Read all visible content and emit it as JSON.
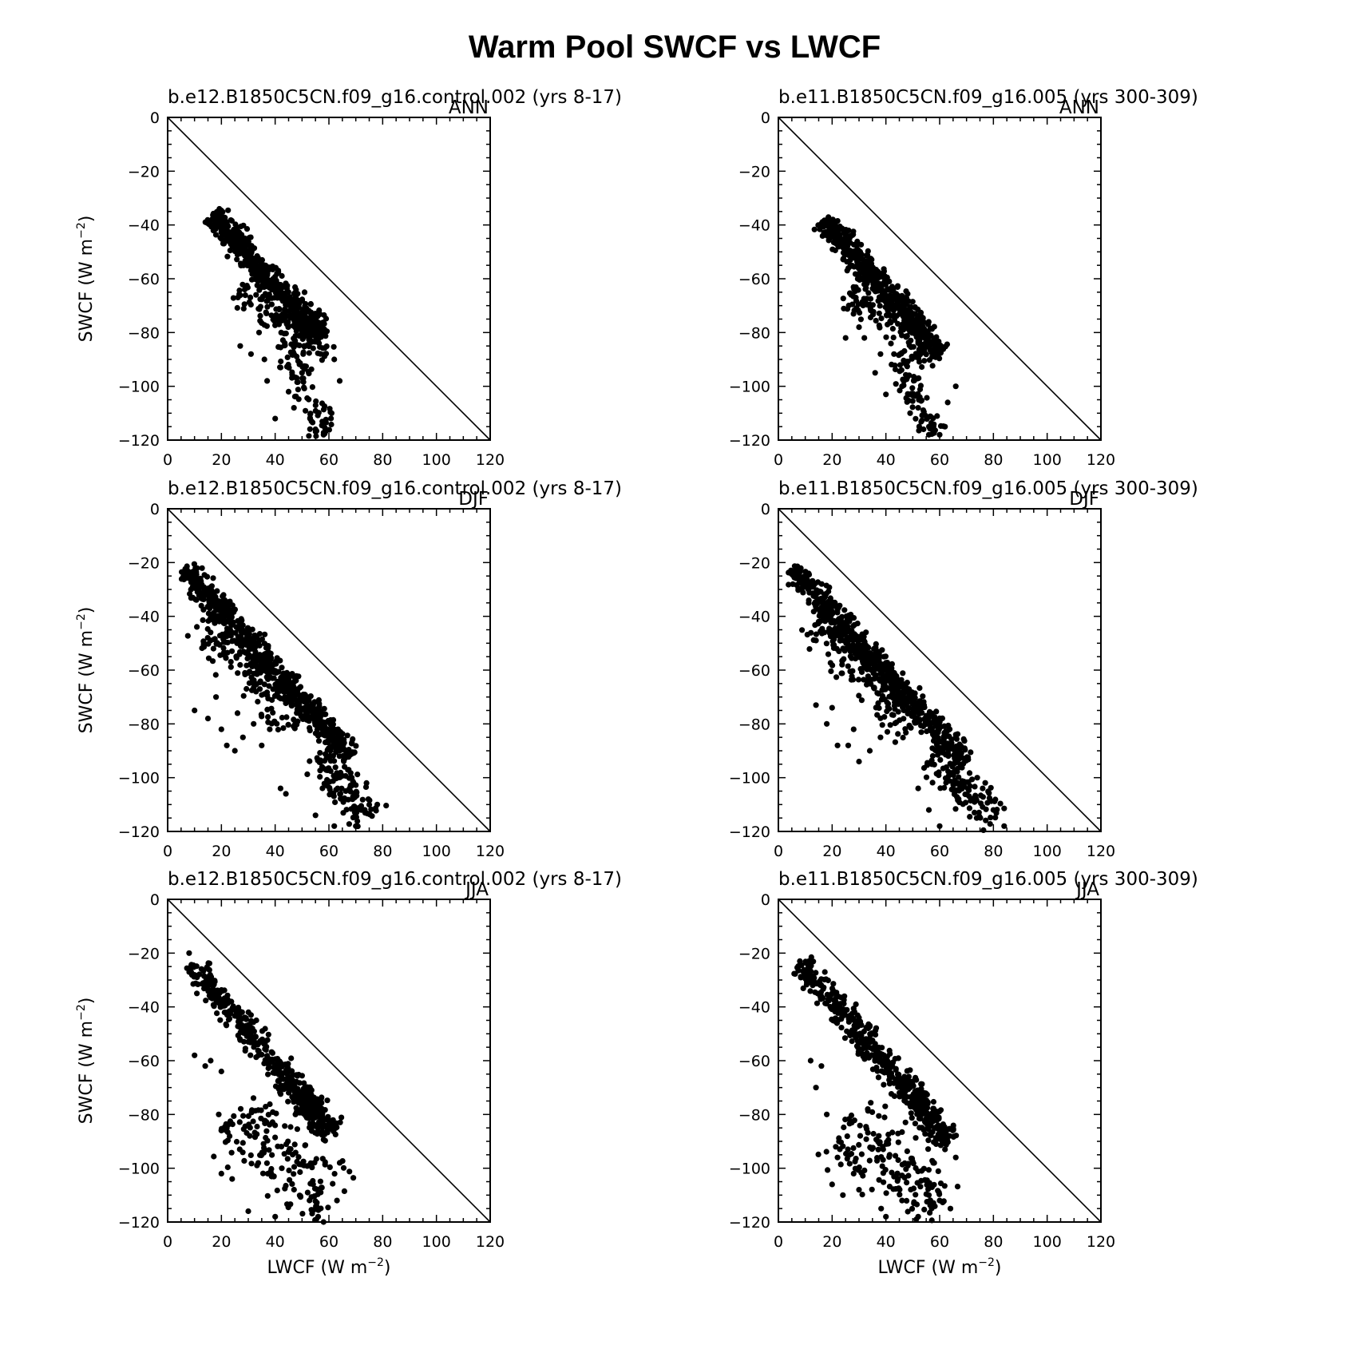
{
  "title": "Warm Pool SWCF vs LWCF",
  "chart_data": [
    {
      "type": "scatter",
      "run": "b.e12.B1850C5CN.f09_g16.control.002 (yrs 8-17)",
      "season": "ANN",
      "ylabel": "SWCF  (W m",
      "ylabel_unit_exp": "−2",
      "ylabel_close": ")",
      "xlabel": "",
      "xlabel_unit_exp": "",
      "xlabel_close": "",
      "xlim": [
        0,
        120
      ],
      "ylim": [
        -120,
        0
      ],
      "xticks": [
        "0",
        "20",
        "40",
        "60",
        "80",
        "100",
        "120"
      ],
      "yticks": [
        "0",
        "−20",
        "−40",
        "−60",
        "−80",
        "−100",
        "−120"
      ],
      "reference_line": "1:1 (SWCF = −LWCF)",
      "clusters": [
        {
          "x0": 16,
          "y0": -36,
          "x1": 58,
          "y1": -82,
          "width": 5,
          "count": 550
        },
        {
          "x0": 26,
          "y0": -64,
          "x1": 60,
          "y1": -88,
          "width": 7,
          "count": 120
        },
        {
          "x0": 44,
          "y0": -84,
          "x1": 58,
          "y1": -118,
          "width": 6,
          "count": 80
        }
      ],
      "points": [
        [
          27,
          -85
        ],
        [
          31,
          -88
        ],
        [
          37,
          -98
        ],
        [
          40,
          -112
        ],
        [
          42,
          -93
        ],
        [
          64,
          -98
        ],
        [
          61,
          -110
        ],
        [
          55,
          -116
        ],
        [
          47,
          -108
        ],
        [
          62,
          -90
        ],
        [
          58,
          -118
        ],
        [
          45,
          -102
        ],
        [
          36,
          -90
        ],
        [
          50,
          -95
        ],
        [
          53,
          -112
        ],
        [
          34,
          -80
        ]
      ]
    },
    {
      "type": "scatter",
      "run": "b.e11.B1850C5CN.f09_g16.005 (yrs 300-309)",
      "season": "ANN",
      "ylabel": "",
      "ylabel_unit_exp": "",
      "ylabel_close": "",
      "xlabel": "",
      "xlabel_unit_exp": "",
      "xlabel_close": "",
      "xlim": [
        0,
        120
      ],
      "ylim": [
        -120,
        0
      ],
      "xticks": [
        "0",
        "20",
        "40",
        "60",
        "80",
        "100",
        "120"
      ],
      "yticks": [
        "0",
        "−20",
        "−40",
        "−60",
        "−80",
        "−100",
        "−120"
      ],
      "reference_line": "1:1 (SWCF = −LWCF)",
      "clusters": [
        {
          "x0": 17,
          "y0": -38,
          "x1": 60,
          "y1": -88,
          "width": 5,
          "count": 560
        },
        {
          "x0": 26,
          "y0": -64,
          "x1": 61,
          "y1": -92,
          "width": 7,
          "count": 110
        },
        {
          "x0": 44,
          "y0": -88,
          "x1": 58,
          "y1": -118,
          "width": 6,
          "count": 80
        }
      ],
      "points": [
        [
          25,
          -82
        ],
        [
          32,
          -82
        ],
        [
          36,
          -95
        ],
        [
          40,
          -103
        ],
        [
          43,
          -88
        ],
        [
          66,
          -100
        ],
        [
          62,
          -115
        ],
        [
          56,
          -118
        ],
        [
          49,
          -110
        ],
        [
          63,
          -106
        ],
        [
          60,
          -118
        ],
        [
          46,
          -100
        ],
        [
          38,
          -88
        ],
        [
          52,
          -108
        ],
        [
          54,
          -116
        ],
        [
          30,
          -78
        ]
      ]
    },
    {
      "type": "scatter",
      "run": "b.e12.B1850C5CN.f09_g16.control.002 (yrs 8-17)",
      "season": "DJF",
      "ylabel": "SWCF  (W m",
      "ylabel_unit_exp": "−2",
      "ylabel_close": ")",
      "xlabel": "",
      "xlabel_unit_exp": "",
      "xlabel_close": "",
      "xlim": [
        0,
        120
      ],
      "ylim": [
        -120,
        0
      ],
      "xticks": [
        "0",
        "20",
        "40",
        "60",
        "80",
        "100",
        "120"
      ],
      "yticks": [
        "0",
        "−20",
        "−40",
        "−60",
        "−80",
        "−100",
        "−120"
      ],
      "reference_line": "1:1 (SWCF = −LWCF)",
      "clusters": [
        {
          "x0": 6,
          "y0": -22,
          "x1": 68,
          "y1": -92,
          "width": 5,
          "count": 600
        },
        {
          "x0": 12,
          "y0": -40,
          "x1": 50,
          "y1": -80,
          "width": 9,
          "count": 180
        },
        {
          "x0": 56,
          "y0": -90,
          "x1": 74,
          "y1": -116,
          "width": 8,
          "count": 120
        }
      ],
      "points": [
        [
          10,
          -75
        ],
        [
          15,
          -78
        ],
        [
          20,
          -82
        ],
        [
          22,
          -88
        ],
        [
          25,
          -90
        ],
        [
          28,
          -85
        ],
        [
          32,
          -80
        ],
        [
          35,
          -88
        ],
        [
          42,
          -104
        ],
        [
          44,
          -106
        ],
        [
          78,
          -110
        ],
        [
          74,
          -102
        ],
        [
          70,
          -118
        ],
        [
          62,
          -118
        ],
        [
          55,
          -114
        ],
        [
          18,
          -70
        ],
        [
          26,
          -76
        ],
        [
          38,
          -82
        ]
      ]
    },
    {
      "type": "scatter",
      "run": "b.e11.B1850C5CN.f09_g16.005 (yrs 300-309)",
      "season": "DJF",
      "ylabel": "",
      "ylabel_unit_exp": "",
      "ylabel_close": "",
      "xlabel": "",
      "xlabel_unit_exp": "",
      "xlabel_close": "",
      "xlim": [
        0,
        120
      ],
      "ylim": [
        -120,
        0
      ],
      "xticks": [
        "0",
        "20",
        "40",
        "60",
        "80",
        "100",
        "120"
      ],
      "yticks": [
        "0",
        "−20",
        "−40",
        "−60",
        "−80",
        "−100",
        "−120"
      ],
      "reference_line": "1:1 (SWCF = −LWCF)",
      "clusters": [
        {
          "x0": 5,
          "y0": -22,
          "x1": 70,
          "y1": -95,
          "width": 5,
          "count": 600
        },
        {
          "x0": 12,
          "y0": -40,
          "x1": 50,
          "y1": -82,
          "width": 9,
          "count": 170
        },
        {
          "x0": 56,
          "y0": -92,
          "x1": 80,
          "y1": -116,
          "width": 7,
          "count": 110
        }
      ],
      "points": [
        [
          14,
          -73
        ],
        [
          18,
          -80
        ],
        [
          22,
          -88
        ],
        [
          26,
          -88
        ],
        [
          30,
          -94
        ],
        [
          34,
          -90
        ],
        [
          38,
          -85
        ],
        [
          52,
          -104
        ],
        [
          56,
          -112
        ],
        [
          60,
          -118
        ],
        [
          84,
          -118
        ],
        [
          80,
          -112
        ],
        [
          76,
          -104
        ],
        [
          74,
          -100
        ],
        [
          66,
          -84
        ],
        [
          20,
          -74
        ],
        [
          28,
          -82
        ]
      ]
    },
    {
      "type": "scatter",
      "run": "b.e12.B1850C5CN.f09_g16.control.002 (yrs 8-17)",
      "season": "JJA",
      "ylabel": "SWCF  (W m",
      "ylabel_unit_exp": "−2",
      "ylabel_close": ")",
      "xlabel": "LWCF  (W m",
      "xlabel_unit_exp": "−2",
      "xlabel_close": ")",
      "xlim": [
        0,
        120
      ],
      "ylim": [
        -120,
        0
      ],
      "xticks": [
        "0",
        "20",
        "40",
        "60",
        "80",
        "100",
        "120"
      ],
      "yticks": [
        "0",
        "−20",
        "−40",
        "−60",
        "−80",
        "−100",
        "−120"
      ],
      "reference_line": "1:1 (SWCF = −LWCF)",
      "clusters": [
        {
          "x0": 9,
          "y0": -24,
          "x1": 62,
          "y1": -88,
          "width": 5,
          "count": 420
        },
        {
          "x0": 48,
          "y0": -72,
          "x1": 60,
          "y1": -86,
          "width": 6,
          "count": 100
        },
        {
          "x0": 25,
          "y0": -80,
          "x1": 60,
          "y1": -116,
          "width": 16,
          "count": 170
        }
      ],
      "points": [
        [
          8,
          -20
        ],
        [
          31,
          -43
        ],
        [
          33,
          -45
        ],
        [
          10,
          -58
        ],
        [
          14,
          -62
        ],
        [
          20,
          -64
        ],
        [
          16,
          -60
        ],
        [
          19,
          -80
        ],
        [
          20,
          -86
        ],
        [
          22,
          -85
        ],
        [
          20,
          -102
        ],
        [
          24,
          -104
        ],
        [
          30,
          -116
        ],
        [
          40,
          -118
        ],
        [
          56,
          -118
        ],
        [
          63,
          -112
        ],
        [
          64,
          -98
        ],
        [
          58,
          -120
        ]
      ]
    },
    {
      "type": "scatter",
      "run": "b.e11.B1850C5CN.f09_g16.005 (yrs 300-309)",
      "season": "JJA",
      "ylabel": "",
      "ylabel_unit_exp": "",
      "ylabel_close": "",
      "xlabel": "LWCF  (W m",
      "xlabel_unit_exp": "−2",
      "xlabel_close": ")",
      "xlim": [
        0,
        120
      ],
      "ylim": [
        -120,
        0
      ],
      "xticks": [
        "0",
        "20",
        "40",
        "60",
        "80",
        "100",
        "120"
      ],
      "yticks": [
        "0",
        "−20",
        "−40",
        "−60",
        "−80",
        "−100",
        "−120"
      ],
      "reference_line": "1:1 (SWCF = −LWCF)",
      "clusters": [
        {
          "x0": 8,
          "y0": -24,
          "x1": 64,
          "y1": -90,
          "width": 5,
          "count": 420
        },
        {
          "x0": 44,
          "y0": -66,
          "x1": 62,
          "y1": -88,
          "width": 6,
          "count": 90
        },
        {
          "x0": 22,
          "y0": -84,
          "x1": 62,
          "y1": -114,
          "width": 15,
          "count": 170
        }
      ],
      "points": [
        [
          8,
          -23
        ],
        [
          34,
          -47
        ],
        [
          12,
          -60
        ],
        [
          16,
          -62
        ],
        [
          14,
          -70
        ],
        [
          18,
          -80
        ],
        [
          22,
          -96
        ],
        [
          20,
          -106
        ],
        [
          24,
          -110
        ],
        [
          28,
          -102
        ],
        [
          30,
          -108
        ],
        [
          40,
          -118
        ],
        [
          52,
          -118
        ],
        [
          64,
          -115
        ],
        [
          66,
          -96
        ],
        [
          56,
          -110
        ],
        [
          46,
          -112
        ]
      ]
    }
  ]
}
